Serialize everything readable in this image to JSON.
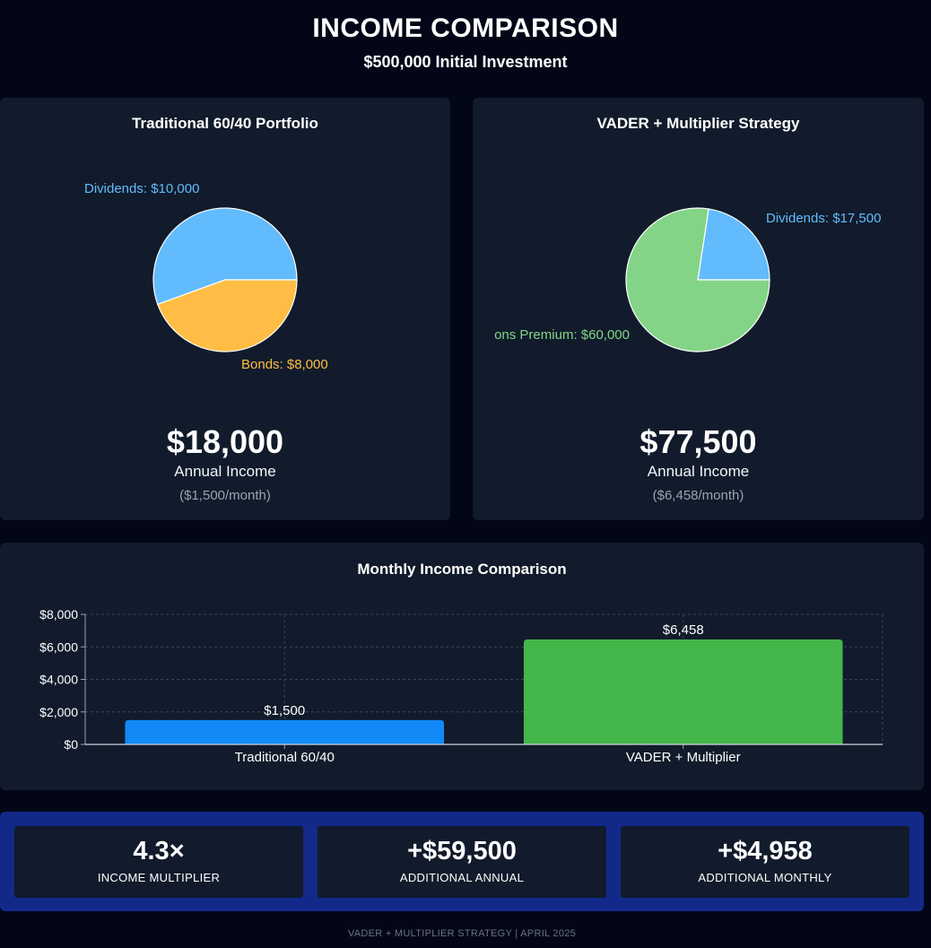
{
  "header": {
    "title": "INCOME COMPARISON",
    "subtitle": "$500,000 Initial Investment"
  },
  "colors": {
    "dividends": "#62bbfc",
    "bonds": "#ffbd45",
    "options_premium": "#84d487",
    "traditional_bar": "#118af7",
    "vader_bar": "#44b64a"
  },
  "traditional": {
    "title": "Traditional 60/40 Portfolio",
    "annual_value": "$18,000",
    "annual_label": "Annual Income",
    "monthly_label": "($1,500/month)"
  },
  "vader": {
    "title": "VADER + Multiplier Strategy",
    "annual_value": "$77,500",
    "annual_label": "Annual Income",
    "monthly_label": "($6,458/month)"
  },
  "chart_data": [
    {
      "type": "pie",
      "title": "Traditional 60/40 Portfolio",
      "slices": [
        {
          "label": "Dividends: $10,000",
          "value": 10000,
          "color": "#62bbfc"
        },
        {
          "label": "Bonds: $8,000",
          "value": 8000,
          "color": "#ffbd45"
        }
      ]
    },
    {
      "type": "pie",
      "title": "VADER + Multiplier Strategy",
      "slices": [
        {
          "label": "Dividends: $17,500",
          "value": 17500,
          "color": "#62bbfc"
        },
        {
          "label": "ons Premium: $60,000",
          "value": 60000,
          "color": "#84d487"
        }
      ]
    },
    {
      "type": "bar",
      "title": "Monthly Income Comparison",
      "categories": [
        "Traditional 60/40",
        "VADER + Multiplier"
      ],
      "values": [
        1500,
        6458
      ],
      "value_labels": [
        "$1,500",
        "$6,458"
      ],
      "colors": [
        "#118af7",
        "#44b64a"
      ],
      "yticks": [
        0,
        2000,
        4000,
        6000,
        8000
      ],
      "ytick_labels": [
        "$0",
        "$2,000",
        "$4,000",
        "$6,000",
        "$8,000"
      ],
      "ylim": [
        0,
        8000
      ],
      "grid": true
    }
  ],
  "summary": [
    {
      "value": "4.3×",
      "label": "INCOME MULTIPLIER"
    },
    {
      "value": "+$59,500",
      "label": "ADDITIONAL ANNUAL"
    },
    {
      "value": "+$4,958",
      "label": "ADDITIONAL MONTHLY"
    }
  ],
  "footer": "VADER + MULTIPLIER STRATEGY | APRIL 2025"
}
